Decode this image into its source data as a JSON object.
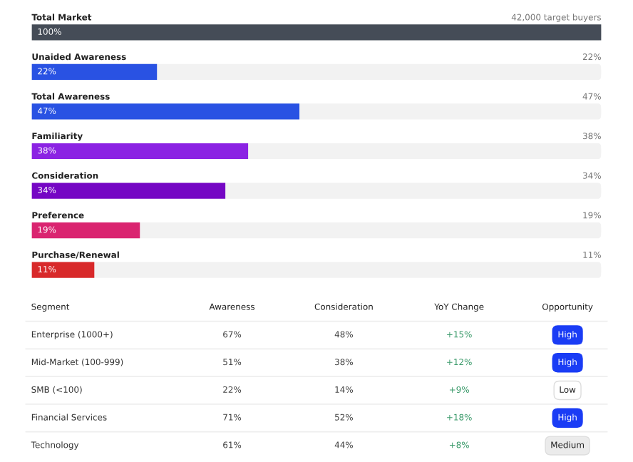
{
  "chart_data": [
    {
      "type": "bar",
      "orientation": "horizontal",
      "tick_labels": false,
      "categories": [
        "Total Market",
        "Unaided Awareness",
        "Total Awareness",
        "Familiarity",
        "Consideration",
        "Preference",
        "Purchase/Renewal"
      ],
      "series": [
        {
          "colors": [
            "#454c57",
            "#2952e3",
            "#2952e3",
            "#8b22e3",
            "#7506c4",
            "#da2470",
            "#d8292a"
          ],
          "values": [
            100,
            22,
            47,
            38,
            34,
            19,
            11
          ],
          "value_labels": [
            "100%",
            "22%",
            "47%",
            "38%",
            "34%",
            "19%",
            "11%"
          ]
        }
      ],
      "annotations": [
        "42,000 target buyers",
        "22%",
        "47%",
        "38%",
        "34%",
        "19%",
        "11%"
      ]
    },
    {
      "type": "other",
      "categories": [
        "Segment",
        "Awareness",
        "Consideration",
        "YoY Change",
        "Opportunity"
      ],
      "annotations": [
        "Enterprise (1000+)",
        "67%",
        "48%",
        "+15%",
        "High",
        "Mid-Market (100-999)",
        "51%",
        "38%",
        "+12%",
        "High",
        "SMB (<100)",
        "22%",
        "14%",
        "+9%",
        "Low",
        "Financial Services",
        "71%",
        "52%",
        "+18%",
        "High",
        "Technology",
        "61%",
        "44%",
        "+8%",
        "Medium"
      ],
      "colors": [
        "#1a3cf5",
        "#1a3cf5",
        "#ffffff",
        "#1a3cf5",
        "#ebebeb"
      ]
    }
  ]
}
